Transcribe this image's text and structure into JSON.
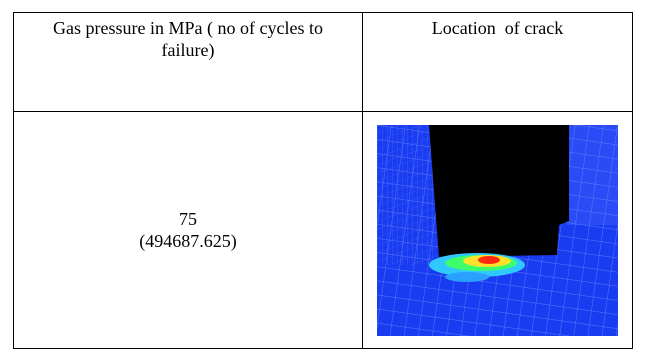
{
  "table": {
    "header": [
      "Gas pressure in MPa ( no of cycles to failure)",
      "Location  of crack"
    ],
    "rows": [
      {
        "pressure": "75",
        "cycles": "(494687.625)"
      }
    ]
  }
}
